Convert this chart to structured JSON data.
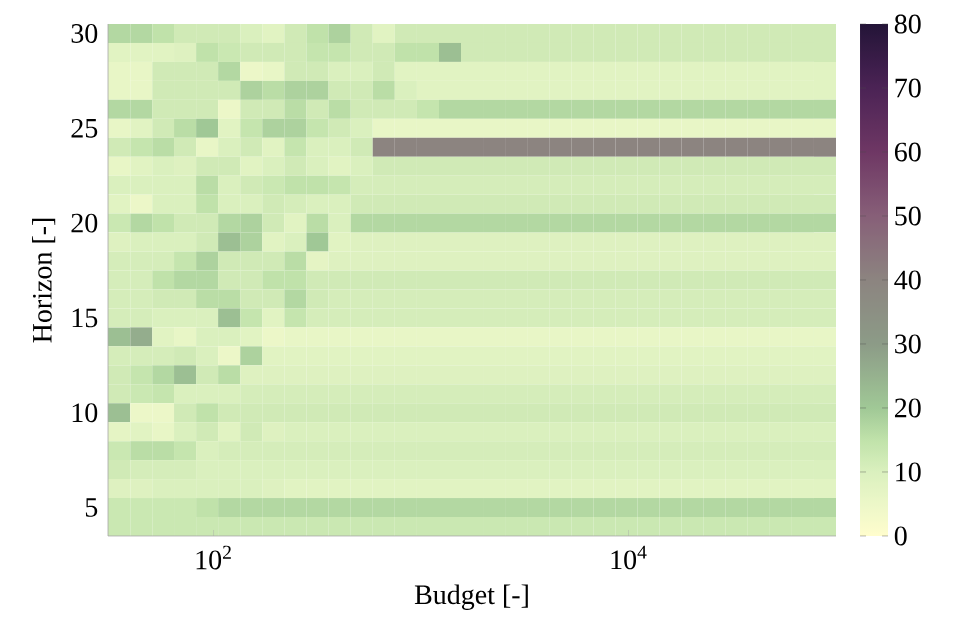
{
  "chart_data": {
    "type": "heatmap",
    "xlabel": "Budget [-]",
    "ylabel": "Horizon [-]",
    "log": "x",
    "xlim": [
      31,
      100000
    ],
    "xticks": [
      {
        "value": 100,
        "label": "10$^{2}$"
      },
      {
        "value": 10000,
        "label": "10$^{4}$"
      }
    ],
    "ylim": [
      3.5,
      30.5
    ],
    "yticks": [
      5,
      10,
      15,
      20,
      25,
      30
    ],
    "clim": [
      0,
      80
    ],
    "cticks": [
      0,
      10,
      20,
      30,
      40,
      50,
      60,
      70,
      80
    ],
    "x": [
      35,
      45,
      57,
      73,
      93,
      119,
      152,
      194,
      248,
      317,
      405,
      518,
      661,
      845,
      1080,
      1380,
      1760,
      2250,
      2870,
      3670,
      4690,
      5990,
      7650,
      9770,
      12500,
      15900,
      20400,
      26000,
      33200,
      42500,
      54200,
      69300,
      88500
    ],
    "y": [
      30,
      29,
      28,
      27,
      26,
      25,
      24,
      23,
      22,
      21,
      20,
      19,
      18,
      17,
      16,
      15,
      14,
      13,
      12,
      11,
      10,
      9,
      8,
      7,
      6,
      5,
      4
    ],
    "cells": [
      [
        17,
        17,
        15,
        12,
        12,
        12,
        10,
        8,
        12,
        15,
        18,
        12,
        8,
        12,
        12,
        12,
        12,
        12,
        12,
        12,
        12,
        12,
        12,
        12,
        12,
        12,
        12,
        12,
        12,
        12,
        12,
        12,
        12
      ],
      [
        8,
        8,
        8,
        9,
        15,
        13,
        12,
        12,
        12,
        14,
        14,
        12,
        12,
        15,
        15,
        22,
        12,
        12,
        12,
        12,
        12,
        12,
        12,
        12,
        12,
        12,
        12,
        12,
        12,
        12,
        12,
        12,
        12
      ],
      [
        6,
        6,
        12,
        12,
        12,
        17,
        5,
        6,
        12,
        12,
        10,
        10,
        12,
        8,
        8,
        8,
        8,
        8,
        8,
        8,
        8,
        8,
        8,
        8,
        8,
        8,
        8,
        8,
        8,
        8,
        8,
        8,
        8
      ],
      [
        6,
        6,
        12,
        12,
        12,
        12,
        18,
        16,
        18,
        18,
        12,
        12,
        16,
        10,
        8,
        8,
        8,
        8,
        8,
        8,
        8,
        8,
        8,
        8,
        8,
        8,
        8,
        8,
        8,
        8,
        8,
        8,
        8
      ],
      [
        17,
        17,
        12,
        12,
        12,
        5,
        12,
        12,
        16,
        12,
        16,
        12,
        12,
        12,
        14,
        17,
        17,
        17,
        17,
        17,
        17,
        17,
        17,
        17,
        17,
        17,
        17,
        17,
        17,
        17,
        17,
        17,
        17
      ],
      [
        6,
        8,
        12,
        16,
        20,
        8,
        14,
        18,
        18,
        14,
        12,
        10,
        6,
        6,
        6,
        6,
        6,
        6,
        6,
        6,
        6,
        6,
        6,
        6,
        6,
        6,
        6,
        6,
        6,
        6,
        6,
        6,
        6
      ],
      [
        12,
        14,
        16,
        12,
        6,
        10,
        12,
        8,
        14,
        10,
        10,
        12,
        40,
        40,
        40,
        40,
        40,
        40,
        40,
        40,
        40,
        40,
        40,
        40,
        40,
        40,
        40,
        40,
        40,
        40,
        40,
        40,
        40
      ],
      [
        6,
        8,
        10,
        9,
        12,
        12,
        8,
        10,
        12,
        10,
        8,
        10,
        12,
        12,
        12,
        12,
        12,
        12,
        12,
        12,
        12,
        12,
        12,
        12,
        12,
        12,
        12,
        12,
        12,
        12,
        12,
        12,
        12
      ],
      [
        10,
        10,
        10,
        10,
        16,
        10,
        12,
        13,
        15,
        15,
        14,
        11,
        11,
        11,
        11,
        11,
        11,
        11,
        11,
        11,
        11,
        11,
        11,
        11,
        11,
        11,
        11,
        11,
        11,
        11,
        11,
        11,
        11
      ],
      [
        8,
        5,
        10,
        10,
        15,
        10,
        10,
        12,
        11,
        10,
        10,
        12,
        12,
        12,
        12,
        12,
        12,
        12,
        12,
        12,
        12,
        12,
        12,
        12,
        12,
        12,
        12,
        12,
        12,
        12,
        12,
        12,
        12
      ],
      [
        13,
        17,
        15,
        12,
        12,
        17,
        18,
        12,
        8,
        16,
        10,
        17,
        17,
        17,
        17,
        17,
        17,
        17,
        17,
        17,
        17,
        17,
        17,
        17,
        17,
        17,
        17,
        17,
        17,
        17,
        17,
        17,
        17
      ],
      [
        9,
        10,
        10,
        10,
        12,
        22,
        18,
        8,
        10,
        20,
        8,
        9,
        9,
        9,
        9,
        9,
        9,
        9,
        9,
        9,
        9,
        9,
        9,
        9,
        9,
        9,
        9,
        9,
        9,
        9,
        9,
        9,
        9
      ],
      [
        11,
        11,
        11,
        14,
        18,
        12,
        12,
        12,
        16,
        7,
        9,
        9,
        9,
        9,
        9,
        9,
        9,
        9,
        9,
        9,
        9,
        9,
        9,
        9,
        9,
        9,
        9,
        9,
        9,
        9,
        9,
        9,
        9
      ],
      [
        11,
        11,
        15,
        17,
        17,
        12,
        12,
        15,
        15,
        12,
        12,
        12,
        12,
        12,
        12,
        12,
        12,
        12,
        12,
        12,
        12,
        12,
        12,
        12,
        12,
        12,
        12,
        12,
        12,
        12,
        12,
        12,
        12
      ],
      [
        11,
        11,
        12,
        12,
        16,
        16,
        12,
        12,
        17,
        12,
        11,
        11,
        11,
        11,
        11,
        11,
        11,
        11,
        11,
        11,
        11,
        11,
        11,
        11,
        11,
        11,
        11,
        11,
        11,
        11,
        11,
        11,
        11
      ],
      [
        11,
        11,
        10,
        10,
        10,
        22,
        14,
        8,
        14,
        11,
        11,
        11,
        11,
        11,
        11,
        11,
        11,
        11,
        11,
        11,
        11,
        11,
        11,
        11,
        11,
        11,
        11,
        11,
        11,
        11,
        11,
        11,
        11
      ],
      [
        22,
        26,
        8,
        6,
        10,
        10,
        8,
        5,
        6,
        6,
        6,
        6,
        6,
        6,
        6,
        6,
        6,
        6,
        6,
        6,
        6,
        6,
        6,
        6,
        6,
        6,
        6,
        6,
        6,
        6,
        6,
        6,
        6
      ],
      [
        11,
        11,
        11,
        12,
        10,
        5,
        18,
        8,
        8,
        8,
        8,
        8,
        8,
        8,
        8,
        8,
        8,
        8,
        8,
        8,
        8,
        8,
        8,
        8,
        8,
        8,
        8,
        8,
        8,
        8,
        8,
        8,
        8
      ],
      [
        12,
        14,
        17,
        22,
        12,
        16,
        9,
        9,
        9,
        9,
        9,
        9,
        9,
        9,
        9,
        9,
        9,
        9,
        9,
        9,
        9,
        9,
        9,
        9,
        9,
        9,
        9,
        9,
        9,
        9,
        9,
        9,
        9
      ],
      [
        12,
        13,
        14,
        10,
        10,
        10,
        11,
        11,
        11,
        11,
        11,
        11,
        11,
        11,
        11,
        11,
        11,
        11,
        11,
        11,
        11,
        11,
        11,
        11,
        11,
        11,
        11,
        11,
        11,
        11,
        11,
        11,
        11
      ],
      [
        22,
        5,
        5,
        12,
        15,
        12,
        12,
        12,
        12,
        12,
        12,
        12,
        12,
        12,
        12,
        12,
        12,
        12,
        12,
        12,
        12,
        12,
        12,
        12,
        12,
        12,
        12,
        12,
        12,
        12,
        12,
        12,
        12
      ],
      [
        7,
        8,
        6,
        10,
        12,
        8,
        12,
        9,
        10,
        10,
        10,
        10,
        10,
        10,
        10,
        10,
        10,
        10,
        10,
        10,
        10,
        10,
        10,
        10,
        10,
        10,
        10,
        10,
        10,
        10,
        10,
        10,
        10
      ],
      [
        13,
        16,
        16,
        14,
        10,
        11,
        11,
        11,
        11,
        11,
        11,
        11,
        11,
        11,
        11,
        11,
        11,
        11,
        11,
        11,
        11,
        11,
        11,
        11,
        11,
        11,
        11,
        11,
        11,
        11,
        11,
        11,
        11
      ],
      [
        12,
        11,
        11,
        11,
        10,
        10,
        10,
        10,
        10,
        10,
        10,
        10,
        10,
        10,
        10,
        10,
        10,
        10,
        10,
        10,
        10,
        10,
        10,
        10,
        10,
        10,
        10,
        10,
        10,
        10,
        10,
        10,
        10
      ],
      [
        9,
        9,
        10,
        10,
        10,
        10,
        10,
        9,
        8,
        8,
        8,
        8,
        8,
        8,
        8,
        8,
        8,
        8,
        8,
        8,
        8,
        8,
        8,
        8,
        8,
        8,
        8,
        8,
        8,
        8,
        8,
        8,
        8
      ],
      [
        13,
        13,
        13,
        13,
        15,
        17,
        17,
        17,
        17,
        17,
        17,
        17,
        17,
        17,
        17,
        17,
        17,
        17,
        17,
        17,
        17,
        17,
        17,
        17,
        17,
        17,
        17,
        17,
        17,
        17,
        17,
        17,
        17
      ],
      [
        13,
        13,
        13,
        13,
        13,
        13,
        13,
        13,
        13,
        13,
        13,
        13,
        13,
        13,
        13,
        13,
        13,
        13,
        13,
        13,
        13,
        13,
        13,
        13,
        13,
        13,
        13,
        13,
        13,
        13,
        13,
        13,
        13
      ]
    ]
  }
}
